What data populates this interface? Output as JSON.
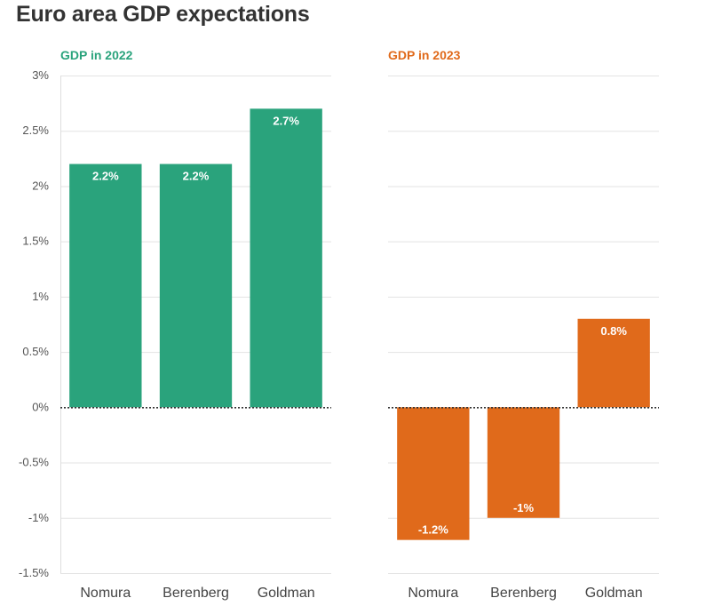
{
  "title": "Euro area GDP expectations",
  "chart_data": [
    {
      "type": "bar",
      "title": "GDP in 2022",
      "color": "#2aa37c",
      "categories": [
        "Nomura",
        "Berenberg",
        "Goldman"
      ],
      "values": [
        2.2,
        2.2,
        2.7
      ],
      "data_labels": [
        "2.2%",
        "2.2%",
        "2.7%"
      ],
      "ylim": [
        -1.5,
        3
      ],
      "yticks": [
        3,
        2.5,
        2,
        1.5,
        1,
        0.5,
        0,
        -0.5,
        -1,
        -1.5
      ],
      "ytick_labels": [
        "3%",
        "2.5%",
        "2%",
        "1.5%",
        "1%",
        "0.5%",
        "0%",
        "-0.5%",
        "-1%",
        "-1.5%"
      ],
      "grid": true,
      "xlabel": "",
      "ylabel": ""
    },
    {
      "type": "bar",
      "title": "GDP in 2023",
      "color": "#e06a1b",
      "categories": [
        "Nomura",
        "Berenberg",
        "Goldman"
      ],
      "values": [
        -1.2,
        -1,
        0.8
      ],
      "data_labels": [
        "-1.2%",
        "-1%",
        "0.8%"
      ],
      "ylim": [
        -1.5,
        3
      ],
      "yticks": [
        3,
        2.5,
        2,
        1.5,
        1,
        0.5,
        0,
        -0.5,
        -1,
        -1.5
      ],
      "grid": true,
      "xlabel": "",
      "ylabel": ""
    }
  ]
}
